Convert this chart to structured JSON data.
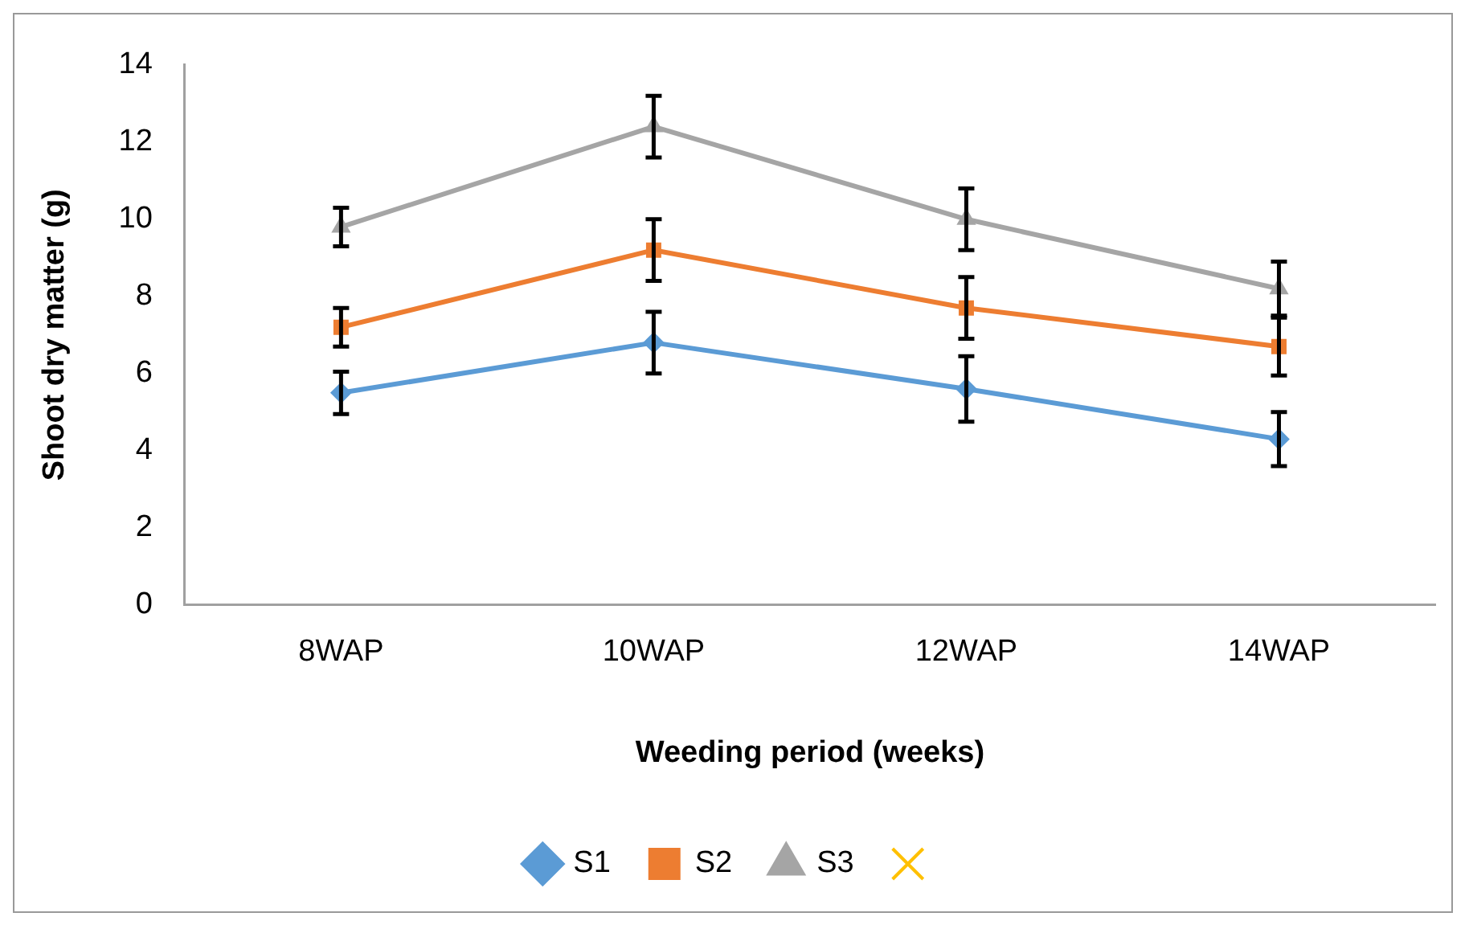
{
  "chart_data": {
    "type": "line",
    "xlabel": "Weeding period (weeks)",
    "ylabel": "Shoot dry matter (g)",
    "categories": [
      "8WAP",
      "10WAP",
      "12WAP",
      "14WAP"
    ],
    "ylim": [
      0,
      14
    ],
    "yticks": [
      0,
      2,
      4,
      6,
      8,
      10,
      12,
      14
    ],
    "grid": false,
    "legend": "bottom",
    "series": [
      {
        "name": "S1",
        "color": "#5b9bd5",
        "marker": "diamond",
        "values": [
          5.5,
          6.8,
          5.6,
          4.3
        ],
        "errors": [
          0.55,
          0.8,
          0.85,
          0.7
        ]
      },
      {
        "name": "S2",
        "color": "#ed7d31",
        "marker": "square",
        "values": [
          7.2,
          9.2,
          7.7,
          6.7
        ],
        "errors": [
          0.5,
          0.8,
          0.8,
          0.75
        ]
      },
      {
        "name": "S3",
        "color": "#a5a5a5",
        "marker": "triangle",
        "values": [
          9.8,
          12.4,
          10.0,
          8.2
        ],
        "errors": [
          0.5,
          0.8,
          0.8,
          0.7
        ]
      },
      {
        "color": "#ffc000",
        "marker": "cross",
        "values": [
          null,
          null,
          null,
          null
        ]
      }
    ]
  }
}
